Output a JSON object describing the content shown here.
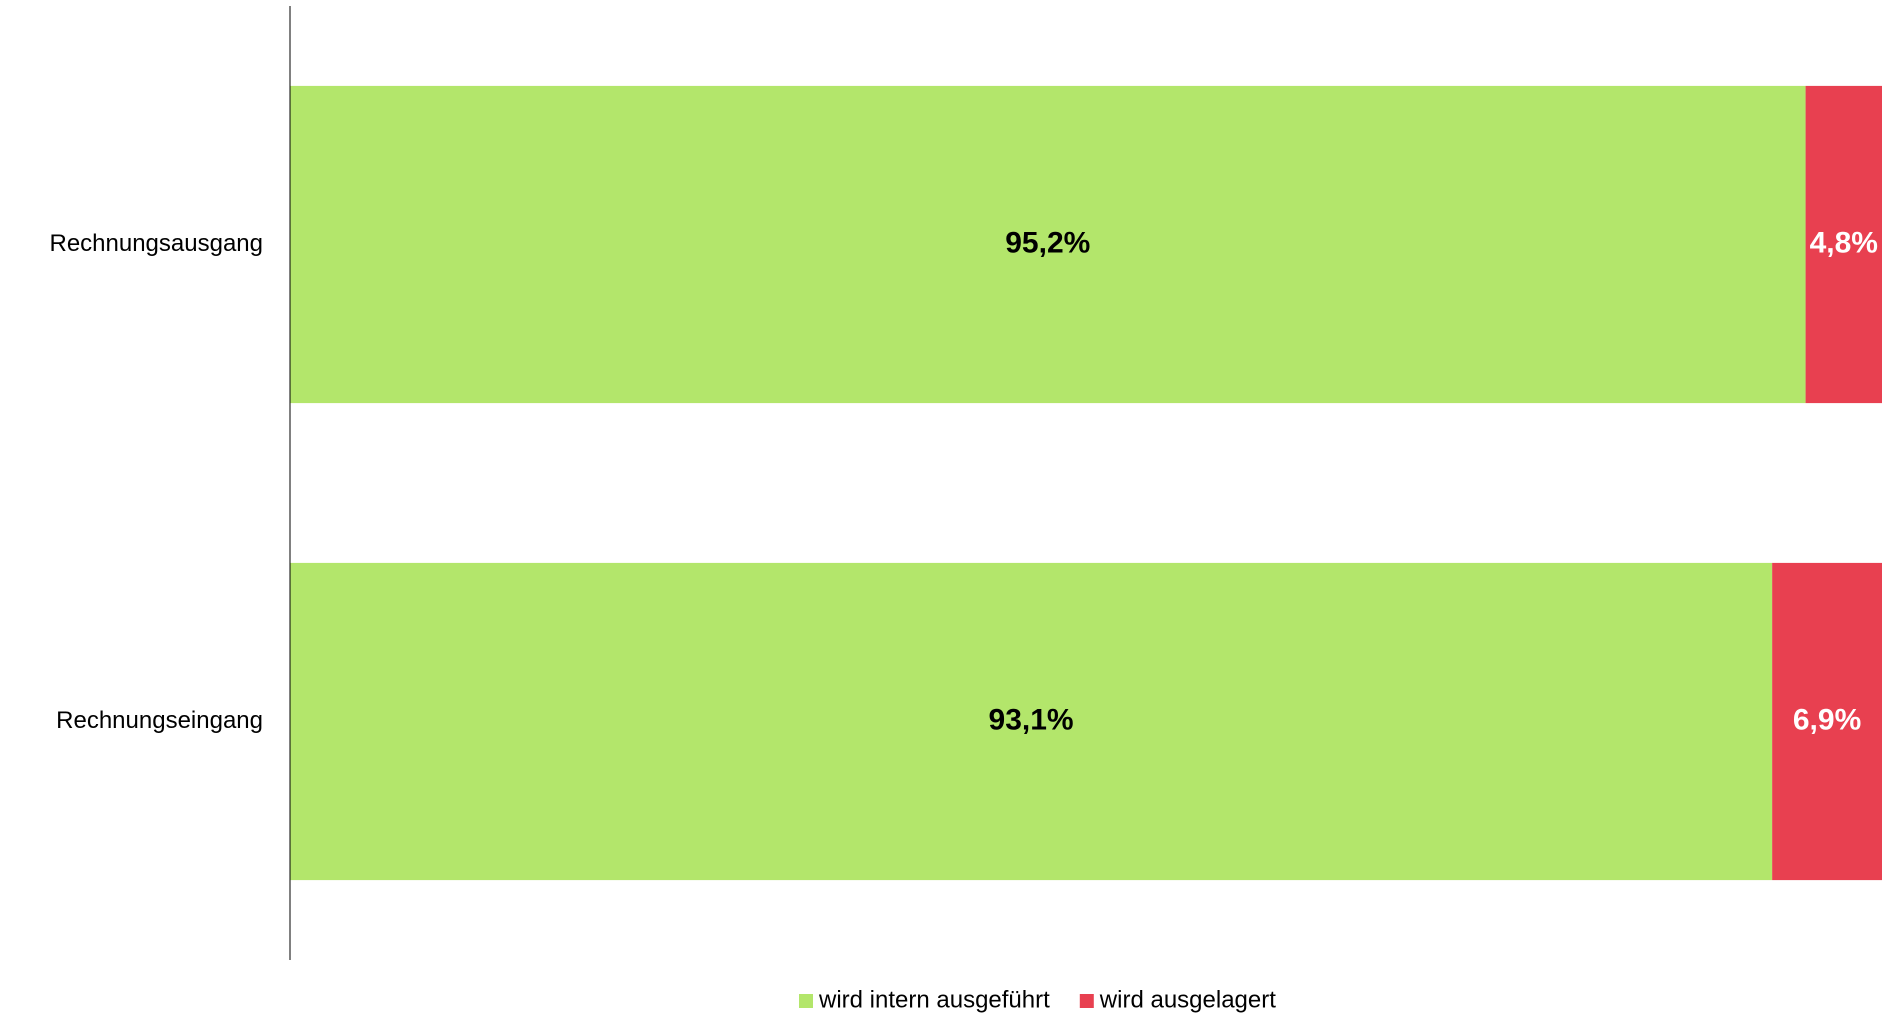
{
  "chart_data": {
    "type": "bar",
    "orientation": "horizontal",
    "stacked": true,
    "categories": [
      "Rechnungsausgang",
      "Rechnungseingang"
    ],
    "series": [
      {
        "name": "wird intern ausgeführt",
        "color": "#b3e66b",
        "label_color": "#000000",
        "values": [
          95.2,
          93.1
        ],
        "value_labels": [
          "95,2%",
          "93,1%"
        ]
      },
      {
        "name": "wird ausgelagert",
        "color": "#e84050",
        "label_color": "#ffffff",
        "values": [
          4.8,
          6.9
        ],
        "value_labels": [
          "4,8%",
          "6,9%"
        ]
      }
    ],
    "xlim": [
      0,
      100
    ],
    "legend": "bottom"
  }
}
